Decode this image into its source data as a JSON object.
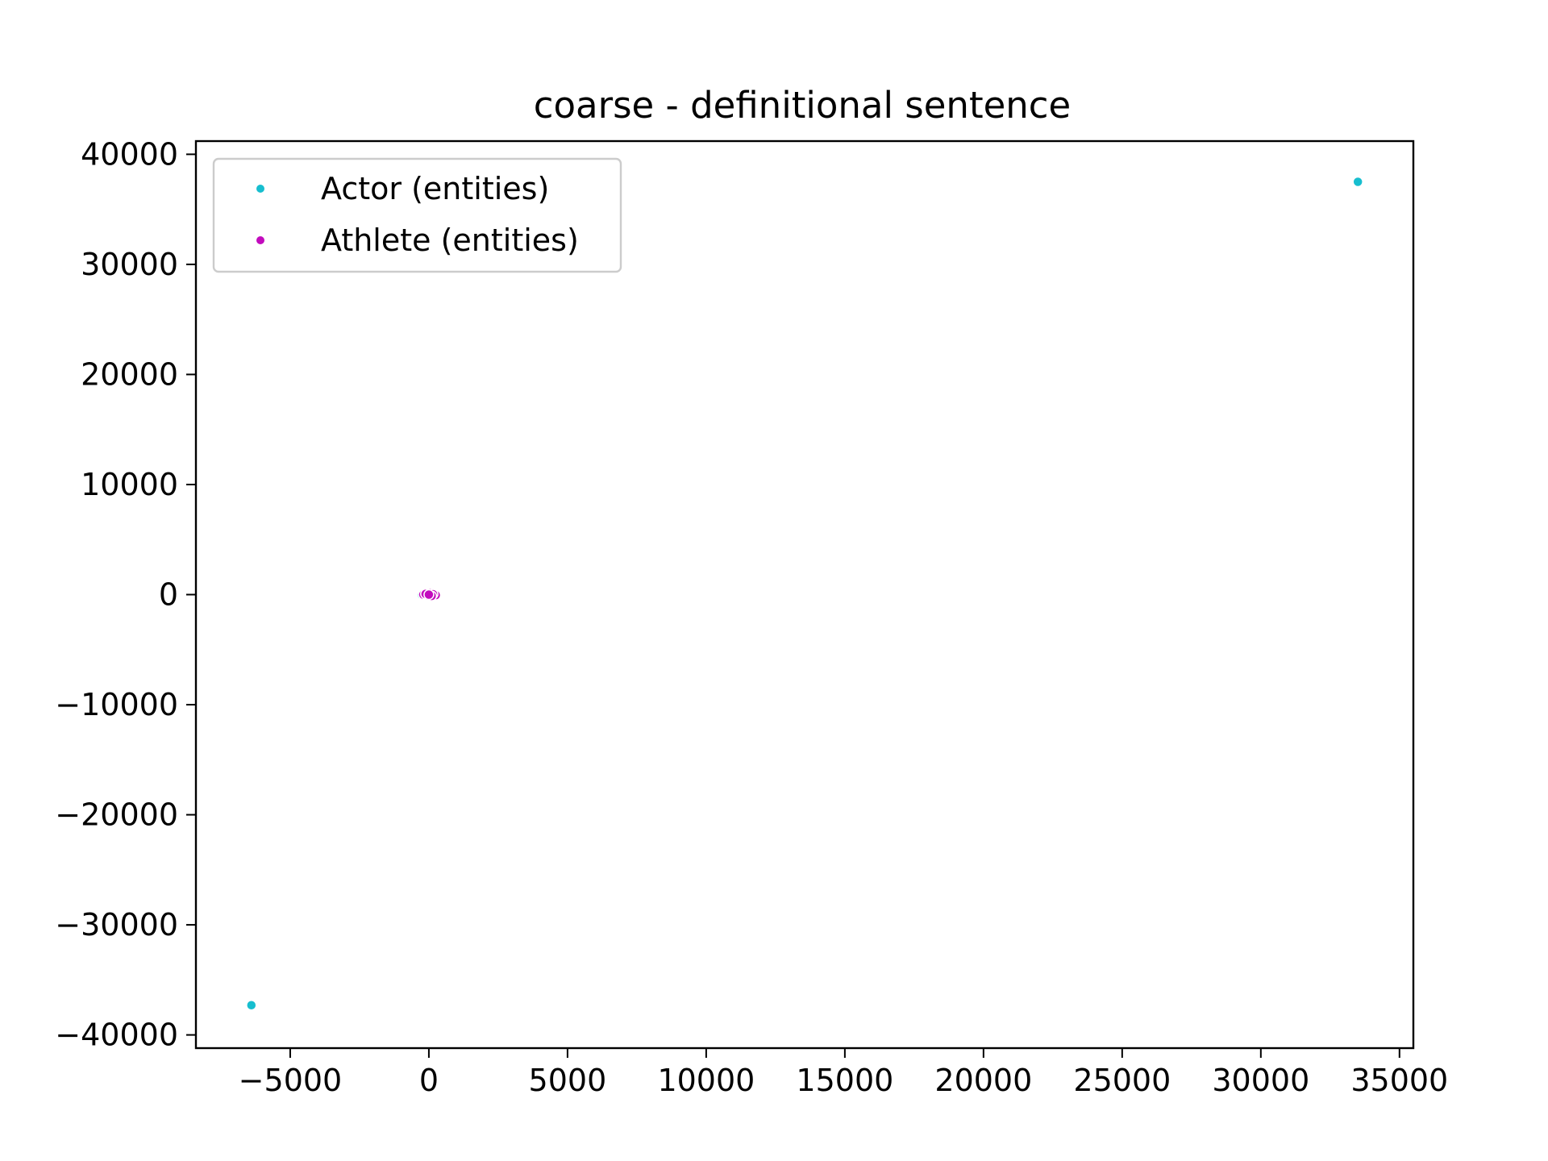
{
  "chart_data": {
    "type": "scatter",
    "title": "coarse - definitional sentence",
    "xlabel": "",
    "ylabel": "",
    "xlim": [
      -8400,
      35500
    ],
    "ylim": [
      -41200,
      41200
    ],
    "x_ticks": [
      -5000,
      0,
      5000,
      10000,
      15000,
      20000,
      25000,
      30000,
      35000
    ],
    "x_tick_labels": [
      "−5000",
      "0",
      "5000",
      "10000",
      "15000",
      "20000",
      "25000",
      "30000",
      "35000"
    ],
    "y_ticks": [
      40000,
      30000,
      20000,
      10000,
      0,
      -10000,
      -20000,
      -30000,
      -40000
    ],
    "y_tick_labels": [
      "40000",
      "30000",
      "20000",
      "10000",
      "0",
      "−10000",
      "−20000",
      "−30000",
      "−40000"
    ],
    "grid": false,
    "legend_position": "upper-left",
    "series": [
      {
        "name": "Actor (entities)",
        "color": "#17becf",
        "points": [
          [
            33500,
            37500
          ],
          [
            -6400,
            -37300
          ],
          [
            -150,
            60
          ],
          [
            80,
            -40
          ],
          [
            200,
            20
          ],
          [
            -250,
            -30
          ],
          [
            20,
            90
          ]
        ]
      },
      {
        "name": "Athlete (entities)",
        "color": "#c20bbd",
        "points": [
          [
            -200,
            0
          ],
          [
            250,
            -50
          ],
          [
            50,
            120
          ],
          [
            -50,
            -80
          ],
          [
            150,
            40
          ],
          [
            -120,
            60
          ],
          [
            100,
            -120
          ],
          [
            0,
            0
          ]
        ]
      }
    ]
  }
}
